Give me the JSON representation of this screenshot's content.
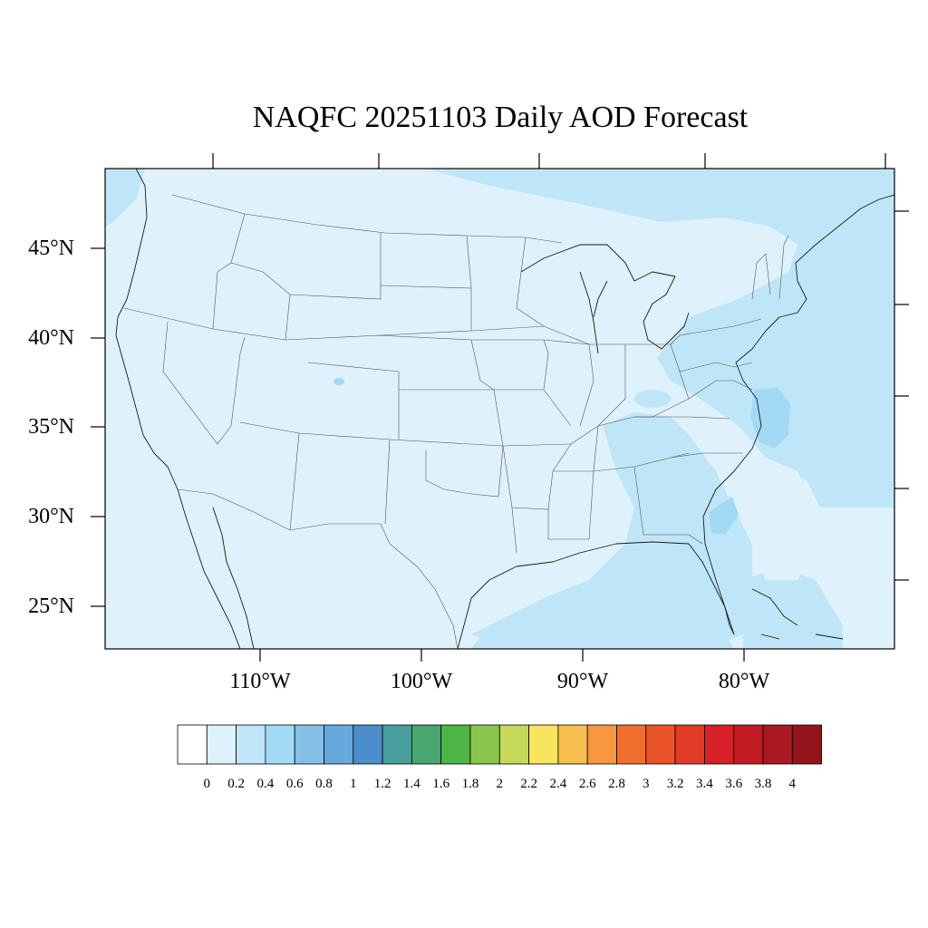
{
  "title": "NAQFC 20251103 Daily AOD Forecast",
  "map": {
    "projection": "lambert-conformal",
    "background_value_color": "#dff1fb",
    "lat_labels": [
      "45°N",
      "40°N",
      "35°N",
      "30°N",
      "25°N"
    ],
    "lon_labels": [
      "110°W",
      "100°W",
      "90°W",
      "80°W"
    ]
  },
  "colorbar": {
    "colors": [
      "#ffffff",
      "#dff1fb",
      "#bfe6f8",
      "#a2daf5",
      "#84bfe6",
      "#67a8dd",
      "#4c8ecb",
      "#489e9c",
      "#4aa66f",
      "#4db446",
      "#8ac54e",
      "#c6d85a",
      "#f8e45e",
      "#f8be4e",
      "#f7973f",
      "#f26e2f",
      "#ea5228",
      "#e13a25",
      "#d52127",
      "#c11c24",
      "#aa1821",
      "#93151c"
    ],
    "labels": [
      "0",
      "0.2",
      "0.4",
      "0.6",
      "0.8",
      "1",
      "1.2",
      "1.4",
      "1.6",
      "1.8",
      "2",
      "2.2",
      "2.4",
      "2.6",
      "2.8",
      "3",
      "3.2",
      "3.4",
      "3.6",
      "3.8",
      "4"
    ]
  }
}
